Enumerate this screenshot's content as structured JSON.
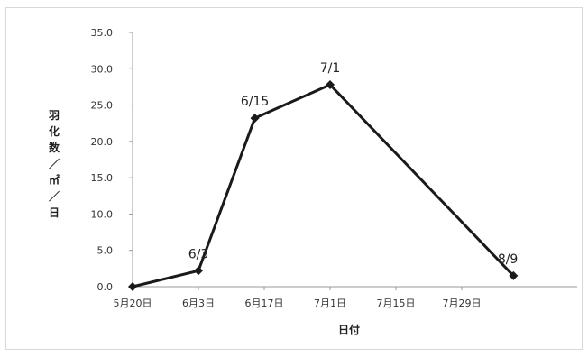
{
  "chart_data": {
    "type": "line",
    "title": "",
    "xlabel": "日付",
    "ylabel": "羽化数／㎡／日",
    "ylim": [
      0,
      35
    ],
    "yticks": [
      "0.0",
      "5.0",
      "10.0",
      "15.0",
      "20.0",
      "25.0",
      "30.0",
      "35.0"
    ],
    "x_tick_labels": [
      "5月20日",
      "6月3日",
      "6月17日",
      "7月1日",
      "7月15日",
      "7月29日"
    ],
    "x_tick_days": [
      0,
      14,
      28,
      42,
      56,
      70
    ],
    "grid": false,
    "legend": "none",
    "line_color": "#1a1a1a",
    "series": [
      {
        "points": [
          {
            "x": "5/20",
            "y": 0.0,
            "label": ""
          },
          {
            "x": "6/3",
            "y": 2.2,
            "label": "6/3"
          },
          {
            "x": "6/15",
            "y": 23.2,
            "label": "6/15"
          },
          {
            "x": "7/1",
            "y": 27.8,
            "label": "7/1"
          },
          {
            "x": "8/9",
            "y": 1.5,
            "label": "8/9"
          }
        ]
      }
    ]
  }
}
